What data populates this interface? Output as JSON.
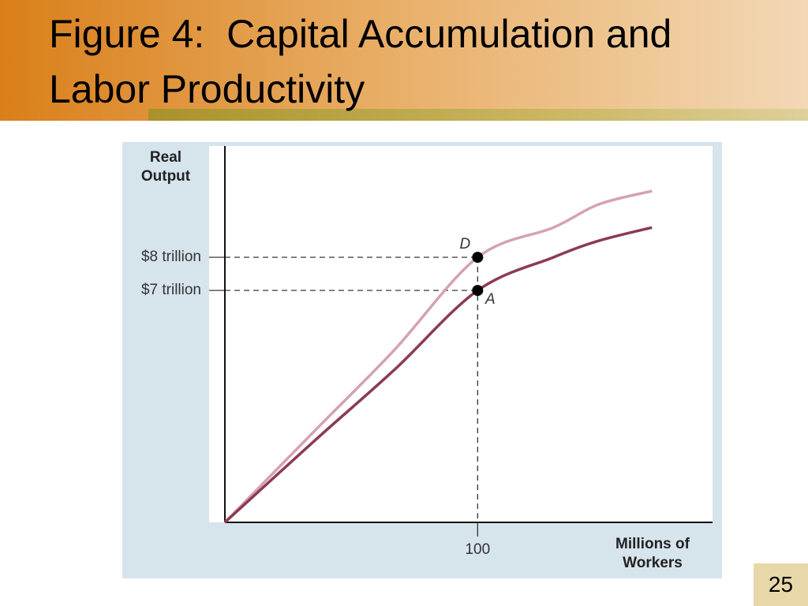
{
  "chart_data": {
    "type": "line",
    "title": "Figure 4:  Capital Accumulation and Labor Productivity",
    "y_label": "Real Output",
    "x_label": "Millions of Workers",
    "x": [
      0,
      36,
      67,
      100,
      130,
      148,
      169
    ],
    "series": [
      {
        "color": "#d4a2b0",
        "values": [
          0,
          2.8,
          5.2,
          8,
          8.9,
          9.6,
          10.0
        ]
      },
      {
        "color": "#8b3a57",
        "values": [
          0,
          2.5,
          4.6,
          7,
          8.0,
          8.5,
          8.9
        ]
      }
    ],
    "xlim": [
      0,
      192
    ],
    "ylim": [
      0,
      11.36
    ],
    "xticks": [
      100
    ],
    "yticks": [
      {
        "value": 7,
        "label": "$7 trillion"
      },
      {
        "value": 8,
        "label": "$8 trillion"
      }
    ],
    "annotations": [
      {
        "text": "D",
        "series": 0,
        "index": 3
      },
      {
        "text": "A",
        "series": 1,
        "index": 3
      }
    ]
  },
  "slide_number": "25"
}
